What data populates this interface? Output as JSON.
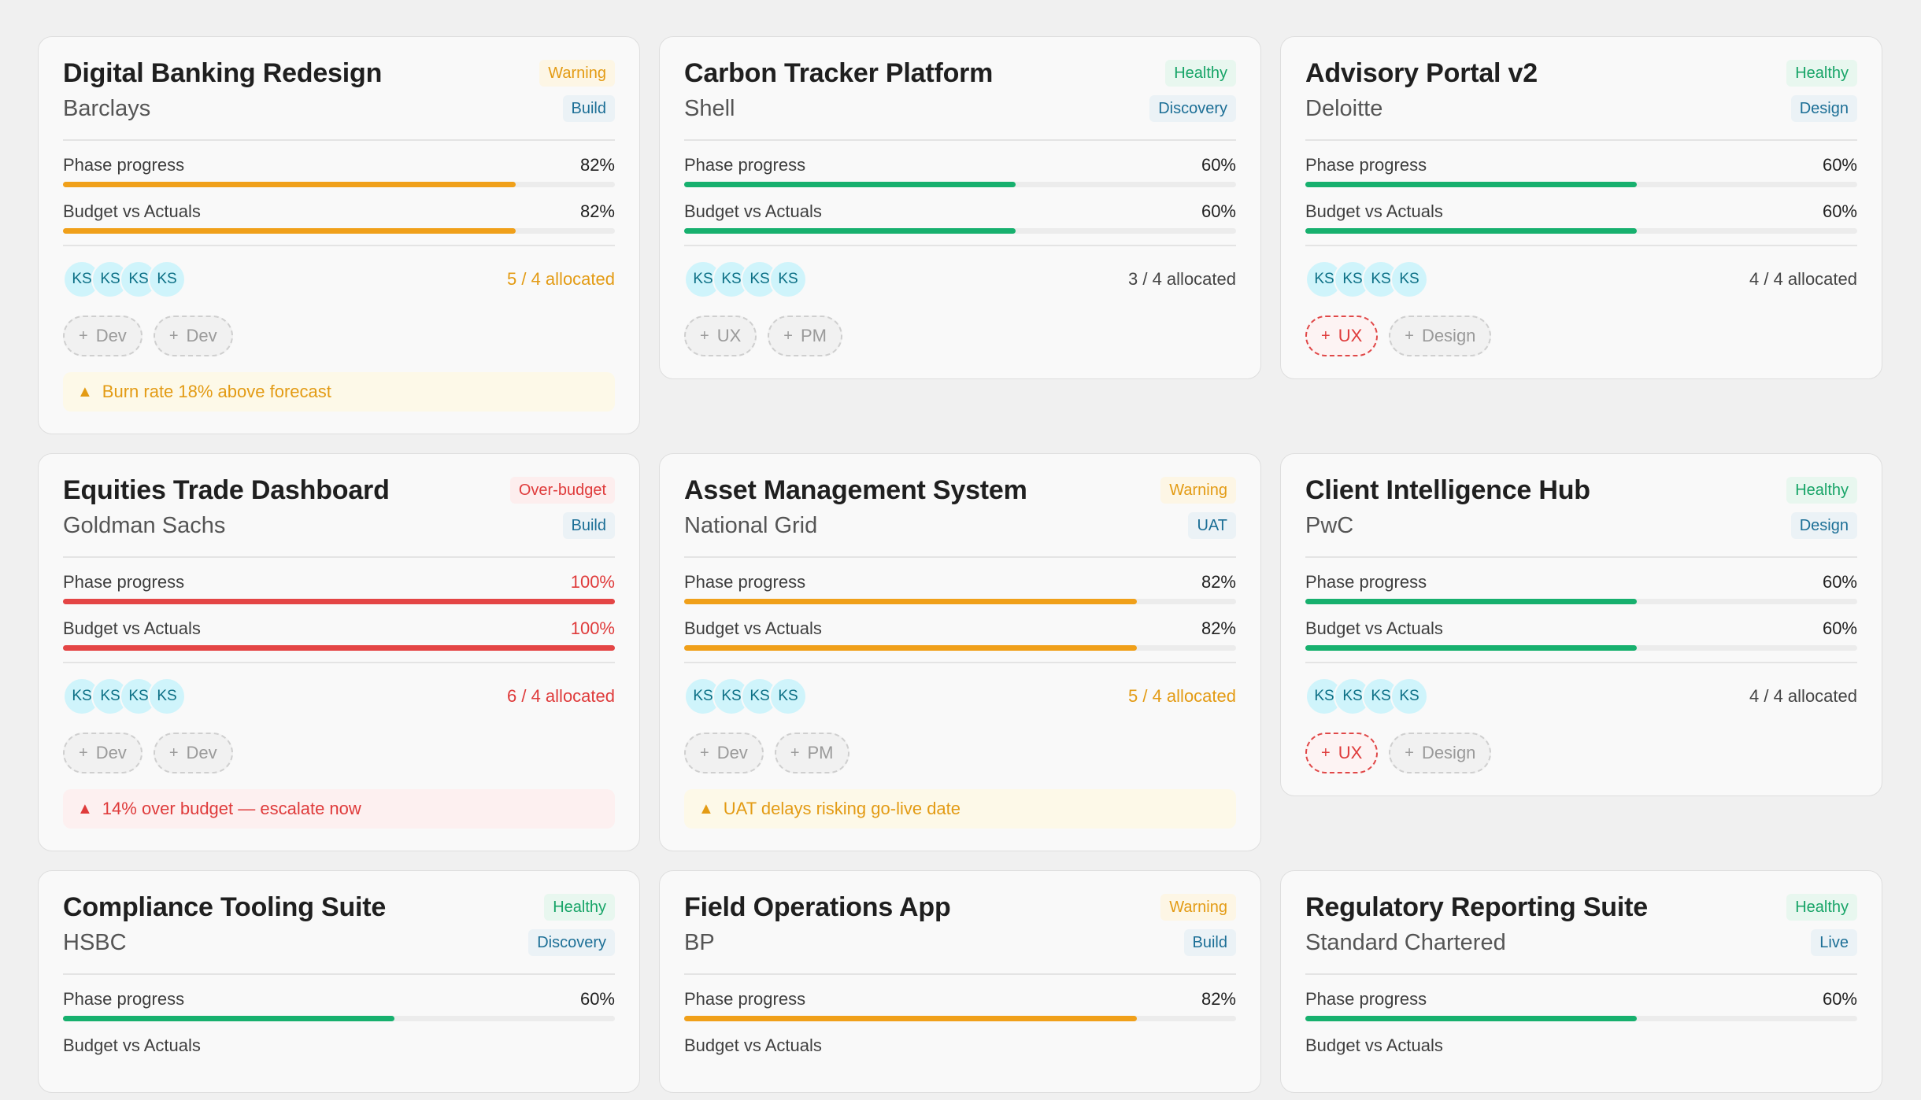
{
  "labels": {
    "phase_progress": "Phase progress",
    "budget": "Budget vs Actuals"
  },
  "colors": {
    "healthy": "#17b06e",
    "warning": "#f0a01a",
    "over": "#e44545",
    "avatar_bg": "#cff4fb"
  },
  "projects": [
    {
      "title": "Digital Banking Redesign",
      "client": "Barclays",
      "status": "Warning",
      "status_kind": "warning",
      "phase": "Build",
      "phase_value": "82%",
      "phase_fraction": 0.82,
      "budget_value": "82%",
      "budget_fraction": 0.82,
      "avatars": [
        "KS",
        "KS",
        "KS",
        "KS"
      ],
      "allocation": "5 / 4 allocated",
      "alloc_kind": "warn",
      "roles": [
        {
          "label": "Dev",
          "urgent": false
        },
        {
          "label": "Dev",
          "urgent": false
        }
      ],
      "alert": "Burn rate 18% above forecast",
      "alert_kind": "warn"
    },
    {
      "title": "Carbon Tracker Platform",
      "client": "Shell",
      "status": "Healthy",
      "status_kind": "healthy",
      "phase": "Discovery",
      "phase_value": "60%",
      "phase_fraction": 0.6,
      "budget_value": "60%",
      "budget_fraction": 0.6,
      "avatars": [
        "KS",
        "KS",
        "KS",
        "KS"
      ],
      "allocation": "3 / 4 allocated",
      "alloc_kind": "normal",
      "roles": [
        {
          "label": "UX",
          "urgent": false
        },
        {
          "label": "PM",
          "urgent": false
        }
      ],
      "alert": "",
      "alert_kind": ""
    },
    {
      "title": "Advisory Portal v2",
      "client": "Deloitte",
      "status": "Healthy",
      "status_kind": "healthy",
      "phase": "Design",
      "phase_value": "60%",
      "phase_fraction": 0.6,
      "budget_value": "60%",
      "budget_fraction": 0.6,
      "avatars": [
        "KS",
        "KS",
        "KS",
        "KS"
      ],
      "allocation": "4 / 4 allocated",
      "alloc_kind": "normal",
      "roles": [
        {
          "label": "UX",
          "urgent": true
        },
        {
          "label": "Design",
          "urgent": false
        }
      ],
      "alert": "",
      "alert_kind": ""
    },
    {
      "title": "Equities Trade Dashboard",
      "client": "Goldman Sachs",
      "status": "Over-budget",
      "status_kind": "over",
      "phase": "Build",
      "phase_value": "100%",
      "phase_fraction": 1.0,
      "budget_value": "100%",
      "budget_fraction": 1.0,
      "avatars": [
        "KS",
        "KS",
        "KS",
        "KS"
      ],
      "allocation": "6 / 4 allocated",
      "alloc_kind": "bad",
      "roles": [
        {
          "label": "Dev",
          "urgent": false
        },
        {
          "label": "Dev",
          "urgent": false
        }
      ],
      "alert": "14% over budget — escalate now",
      "alert_kind": "bad"
    },
    {
      "title": "Asset Management System",
      "client": "National Grid",
      "status": "Warning",
      "status_kind": "warning",
      "phase": "UAT",
      "phase_value": "82%",
      "phase_fraction": 0.82,
      "budget_value": "82%",
      "budget_fraction": 0.82,
      "avatars": [
        "KS",
        "KS",
        "KS",
        "KS"
      ],
      "allocation": "5 / 4 allocated",
      "alloc_kind": "warn",
      "roles": [
        {
          "label": "Dev",
          "urgent": false
        },
        {
          "label": "PM",
          "urgent": false
        }
      ],
      "alert": "UAT delays risking go-live date",
      "alert_kind": "warn"
    },
    {
      "title": "Client Intelligence Hub",
      "client": "PwC",
      "status": "Healthy",
      "status_kind": "healthy",
      "phase": "Design",
      "phase_value": "60%",
      "phase_fraction": 0.6,
      "budget_value": "60%",
      "budget_fraction": 0.6,
      "avatars": [
        "KS",
        "KS",
        "KS",
        "KS"
      ],
      "allocation": "4 / 4 allocated",
      "alloc_kind": "normal",
      "roles": [
        {
          "label": "UX",
          "urgent": true
        },
        {
          "label": "Design",
          "urgent": false
        }
      ],
      "alert": "",
      "alert_kind": ""
    },
    {
      "title": "Compliance Tooling Suite",
      "client": "HSBC",
      "status": "Healthy",
      "status_kind": "healthy",
      "phase": "Discovery",
      "phase_value": "60%",
      "phase_fraction": 0.6,
      "budget_value": "",
      "budget_fraction": null,
      "avatars": [],
      "allocation": "",
      "alloc_kind": "normal",
      "roles": [],
      "alert": "",
      "alert_kind": ""
    },
    {
      "title": "Field Operations App",
      "client": "BP",
      "status": "Warning",
      "status_kind": "warning",
      "phase": "Build",
      "phase_value": "82%",
      "phase_fraction": 0.82,
      "budget_value": "",
      "budget_fraction": null,
      "avatars": [],
      "allocation": "",
      "alloc_kind": "normal",
      "roles": [],
      "alert": "",
      "alert_kind": ""
    },
    {
      "title": "Regulatory Reporting Suite",
      "client": "Standard Chartered",
      "status": "Healthy",
      "status_kind": "healthy",
      "phase": "Live",
      "phase_value": "60%",
      "phase_fraction": 0.6,
      "budget_value": "",
      "budget_fraction": null,
      "avatars": [],
      "allocation": "",
      "alloc_kind": "normal",
      "roles": [],
      "alert": "",
      "alert_kind": ""
    }
  ]
}
